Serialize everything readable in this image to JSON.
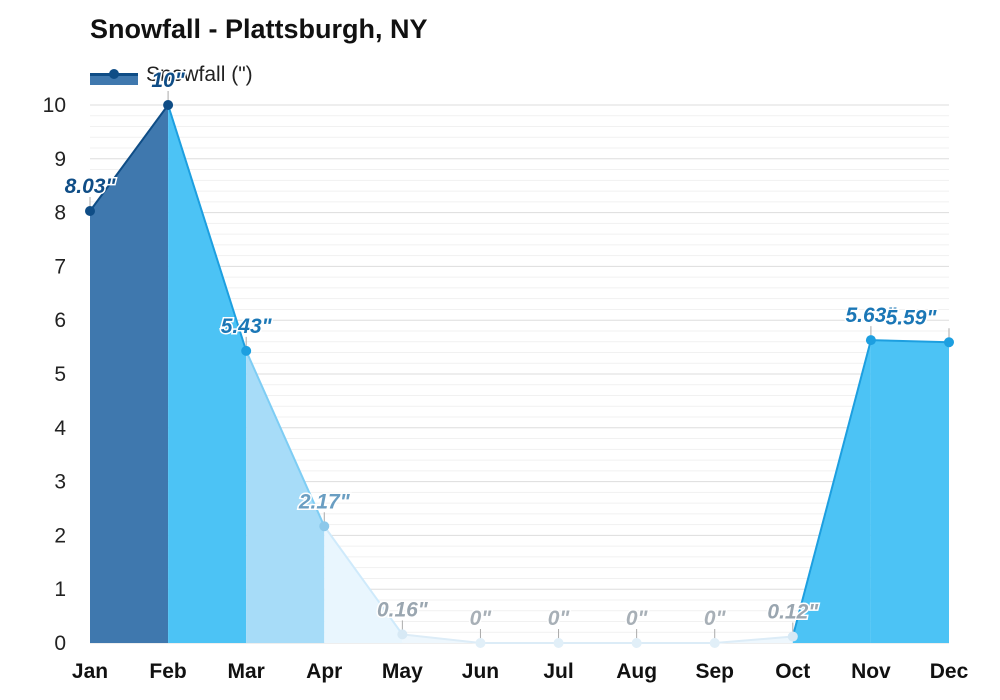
{
  "chart_data": {
    "type": "area",
    "title": "Snowfall - Plattsburgh, NY",
    "legend": {
      "label": "Snowfall (\")",
      "placement": "top-left"
    },
    "categories": [
      "Jan",
      "Feb",
      "Mar",
      "Apr",
      "May",
      "Jun",
      "Jul",
      "Aug",
      "Sep",
      "Oct",
      "Nov",
      "Dec"
    ],
    "values": [
      8.03,
      10,
      5.43,
      2.17,
      0.16,
      0,
      0,
      0,
      0,
      0.12,
      5.63,
      5.59
    ],
    "data_labels": [
      "8.03\"",
      "10\"",
      "5.43\"",
      "2.17\"",
      "0.16\"",
      "0\"",
      "0\"",
      "0\"",
      "0\"",
      "0.12\"",
      "5.63\"",
      "5.59\""
    ],
    "ylim": [
      0,
      10
    ],
    "yticks": [
      "0",
      "1",
      "2",
      "3",
      "4",
      "5",
      "6",
      "7",
      "8",
      "9",
      "10"
    ],
    "xlabel": "",
    "ylabel": "",
    "grid": true,
    "segment_colors": [
      "#3f78ae",
      "#4cc3f5",
      "#a7dcf8",
      "#e9f6fe",
      "#eef7fd",
      "#eef7fd",
      "#eef7fd",
      "#eef7fd",
      "#eef7fd",
      "#4cc3f5",
      "#4cc3f5"
    ],
    "line_colors": [
      "#0f4d86",
      "#1d9fe0",
      "#7ecdf4",
      "#cfeafb",
      "#dcecf7",
      "#dcecf7",
      "#dcecf7",
      "#dcecf7",
      "#dcecf7",
      "#1d9fe0",
      "#1d9fe0"
    ],
    "point_colors": [
      "#0f4d86",
      "#0f4d86",
      "#1d9fe0",
      "#8cc8ea",
      "#d7e9f5",
      "#e1eff8",
      "#e1eff8",
      "#e1eff8",
      "#e1eff8",
      "#d7e9f5",
      "#1d9fe0",
      "#1d9fe0"
    ],
    "label_colors": [
      "#0f4d86",
      "#0f4d86",
      "#1b77b6",
      "#6a9ec2",
      "#9aa6b0",
      "#a8b0b7",
      "#a8b0b7",
      "#a8b0b7",
      "#a8b0b7",
      "#9aa6b0",
      "#1b77b6",
      "#1b77b6"
    ]
  }
}
